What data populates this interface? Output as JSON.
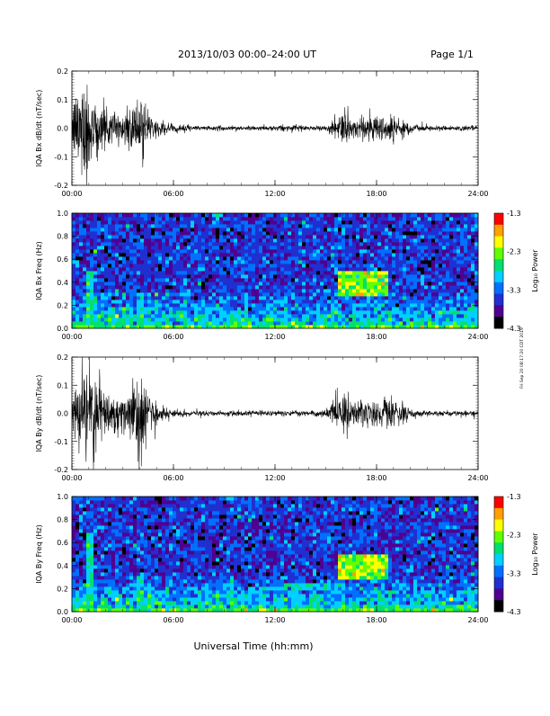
{
  "header": {
    "title": "2013/10/03  00:00–24:00 UT",
    "page": "Page 1/1"
  },
  "footer": {
    "xlabel": "Universal Time (hh:mm)",
    "side_note": "Fri Sep 20 08:17:20 CDT 2019"
  },
  "colorbar": {
    "label": "Log₁₀ Power",
    "ticks": [
      "-1.3",
      "-2.3",
      "-3.3",
      "-4.3"
    ],
    "colors": [
      "#ff0000",
      "#ffa000",
      "#ffff00",
      "#60ff00",
      "#00e070",
      "#00d0ff",
      "#0070ff",
      "#2030d0",
      "#500090",
      "#000000"
    ]
  },
  "chart_data": [
    {
      "type": "line",
      "ylabel": "IQA Bx dB/dt (nT/sec)",
      "xlim": [
        0,
        24
      ],
      "ylim": [
        -0.2,
        0.2
      ],
      "x_ticks": [
        "00:00",
        "06:00",
        "12:00",
        "18:00",
        "24:00"
      ],
      "y_ticks": [
        "0.2",
        "0.1",
        "0.0",
        "-0.1",
        "-0.2"
      ],
      "amplitude_envelope": {
        "hours": [
          0,
          0.5,
          1,
          1.5,
          2,
          2.5,
          3,
          3.5,
          4,
          4.5,
          5,
          6,
          8,
          10,
          12,
          14,
          15,
          15.5,
          16,
          16.5,
          17,
          17.5,
          18,
          18.5,
          19,
          19.5,
          20,
          21,
          22,
          24
        ],
        "nT_per_sec": [
          0.08,
          0.2,
          0.2,
          0.12,
          0.07,
          0.08,
          0.05,
          0.1,
          0.15,
          0.05,
          0.03,
          0.015,
          0.01,
          0.01,
          0.01,
          0.01,
          0.012,
          0.03,
          0.08,
          0.04,
          0.04,
          0.07,
          0.06,
          0.05,
          0.05,
          0.04,
          0.02,
          0.01,
          0.01,
          0.01
        ]
      }
    },
    {
      "type": "heatmap",
      "ylabel": "IQA Bx Freq (Hz)",
      "xlim": [
        0,
        24
      ],
      "ylim": [
        0,
        1.0
      ],
      "x_ticks": [
        "00:00",
        "06:00",
        "12:00",
        "18:00",
        "24:00"
      ],
      "y_ticks": [
        "1.0",
        "0.8",
        "0.6",
        "0.4",
        "0.2",
        "0.0"
      ],
      "zlabel": "Log₁₀ Power",
      "zlim": [
        -4.3,
        -1.3
      ],
      "features": [
        {
          "t0": 15.8,
          "t1": 18.7,
          "f0": 0.28,
          "f1": 0.5,
          "log_power": -2.3
        },
        {
          "t0": 0.8,
          "t1": 1.3,
          "f0": 0.0,
          "f1": 0.5,
          "log_power": -2.8
        },
        {
          "t0": 3.9,
          "t1": 4.3,
          "f0": 0.0,
          "f1": 0.3,
          "log_power": -2.9
        },
        {
          "t0": 0.0,
          "t1": 24.0,
          "f0": 0.0,
          "f1": 0.04,
          "log_power": -2.5
        }
      ]
    },
    {
      "type": "line",
      "ylabel": "IQA By dB/dt (nT/sec)",
      "xlim": [
        0,
        24
      ],
      "ylim": [
        -0.2,
        0.2
      ],
      "x_ticks": [
        "00:00",
        "06:00",
        "12:00",
        "18:00",
        "24:00"
      ],
      "y_ticks": [
        "0.2",
        "0.1",
        "0.0",
        "-0.1",
        "-0.2"
      ],
      "amplitude_envelope": {
        "hours": [
          0,
          0.5,
          1,
          1.5,
          2,
          2.5,
          3,
          3.5,
          4,
          4.5,
          5,
          6,
          8,
          10,
          12,
          14,
          15,
          15.5,
          16,
          16.5,
          17,
          17.5,
          18,
          18.5,
          19,
          19.5,
          20,
          21,
          22,
          24
        ],
        "nT_per_sec": [
          0.08,
          0.2,
          0.2,
          0.13,
          0.08,
          0.07,
          0.07,
          0.1,
          0.2,
          0.08,
          0.04,
          0.015,
          0.01,
          0.01,
          0.01,
          0.01,
          0.015,
          0.05,
          0.09,
          0.05,
          0.06,
          0.06,
          0.05,
          0.07,
          0.08,
          0.05,
          0.02,
          0.01,
          0.01,
          0.01
        ]
      }
    },
    {
      "type": "heatmap",
      "ylabel": "IQA By Freq (Hz)",
      "xlim": [
        0,
        24
      ],
      "ylim": [
        0,
        1.0
      ],
      "x_ticks": [
        "00:00",
        "06:00",
        "12:00",
        "18:00",
        "24:00"
      ],
      "y_ticks": [
        "1.0",
        "0.8",
        "0.6",
        "0.4",
        "0.2",
        "0.0"
      ],
      "zlabel": "Log₁₀ Power",
      "zlim": [
        -4.3,
        -1.3
      ],
      "features": [
        {
          "t0": 15.8,
          "t1": 18.7,
          "f0": 0.28,
          "f1": 0.5,
          "log_power": -2.3
        },
        {
          "t0": 0.8,
          "t1": 1.3,
          "f0": 0.0,
          "f1": 0.7,
          "log_power": -2.8
        },
        {
          "t0": 3.9,
          "t1": 4.3,
          "f0": 0.0,
          "f1": 0.3,
          "log_power": -2.9
        },
        {
          "t0": 12.0,
          "t1": 16.0,
          "f0": 0.2,
          "f1": 0.25,
          "log_power": -3.0
        },
        {
          "t0": 0.0,
          "t1": 24.0,
          "f0": 0.0,
          "f1": 0.04,
          "log_power": -2.5
        }
      ]
    }
  ]
}
